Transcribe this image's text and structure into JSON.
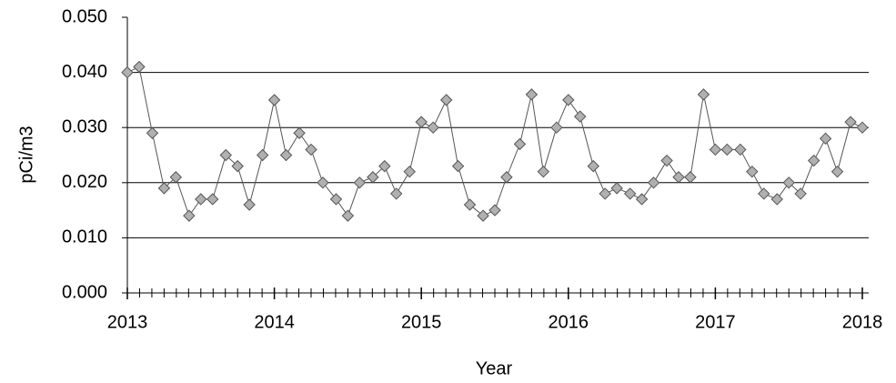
{
  "chart_data": {
    "type": "line",
    "x_label": "Year",
    "y_label": "pCi/m3",
    "x": [
      2013.0,
      2013.08,
      2013.17,
      2013.25,
      2013.33,
      2013.42,
      2013.5,
      2013.58,
      2013.67,
      2013.75,
      2013.83,
      2013.92,
      2014.0,
      2014.08,
      2014.17,
      2014.25,
      2014.33,
      2014.42,
      2014.5,
      2014.58,
      2014.67,
      2014.75,
      2014.83,
      2014.92,
      2015.0,
      2015.08,
      2015.17,
      2015.25,
      2015.33,
      2015.42,
      2015.5,
      2015.58,
      2015.67,
      2015.75,
      2015.83,
      2015.92,
      2016.0,
      2016.08,
      2016.17,
      2016.25,
      2016.33,
      2016.42,
      2016.5,
      2016.58,
      2016.67,
      2016.75,
      2016.83,
      2016.92,
      2017.0,
      2017.08,
      2017.17,
      2017.25,
      2017.33,
      2017.42,
      2017.5,
      2017.58,
      2017.67,
      2017.75,
      2017.83,
      2017.92,
      2018.0
    ],
    "values": [
      0.04,
      0.041,
      0.029,
      0.019,
      0.021,
      0.014,
      0.017,
      0.017,
      0.025,
      0.023,
      0.016,
      0.025,
      0.035,
      0.025,
      0.029,
      0.026,
      0.02,
      0.017,
      0.014,
      0.02,
      0.021,
      0.023,
      0.018,
      0.022,
      0.031,
      0.03,
      0.035,
      0.023,
      0.016,
      0.014,
      0.015,
      0.021,
      0.027,
      0.036,
      0.022,
      0.03,
      0.035,
      0.032,
      0.023,
      0.018,
      0.019,
      0.018,
      0.017,
      0.02,
      0.024,
      0.021,
      0.021,
      0.036,
      0.026,
      0.026,
      0.026,
      0.022,
      0.018,
      0.017,
      0.02,
      0.018,
      0.024,
      0.028,
      0.022,
      0.031,
      0.03
    ],
    "color": "#555555",
    "marker_color": "#b0b0b0",
    "xlim": [
      2013,
      2018
    ],
    "xticks": [
      2013,
      2014,
      2015,
      2016,
      2017,
      2018
    ],
    "ylim": [
      0,
      0.05
    ],
    "yticks": [
      {
        "value": 0,
        "label": "0.000"
      },
      {
        "value": 0.01,
        "label": "0.010"
      },
      {
        "value": 0.02,
        "label": "0.020"
      },
      {
        "value": 0.03,
        "label": "0.030"
      },
      {
        "value": 0.04,
        "label": "0.040"
      },
      {
        "value": 0.05,
        "label": "0.050"
      }
    ],
    "grid": true
  }
}
